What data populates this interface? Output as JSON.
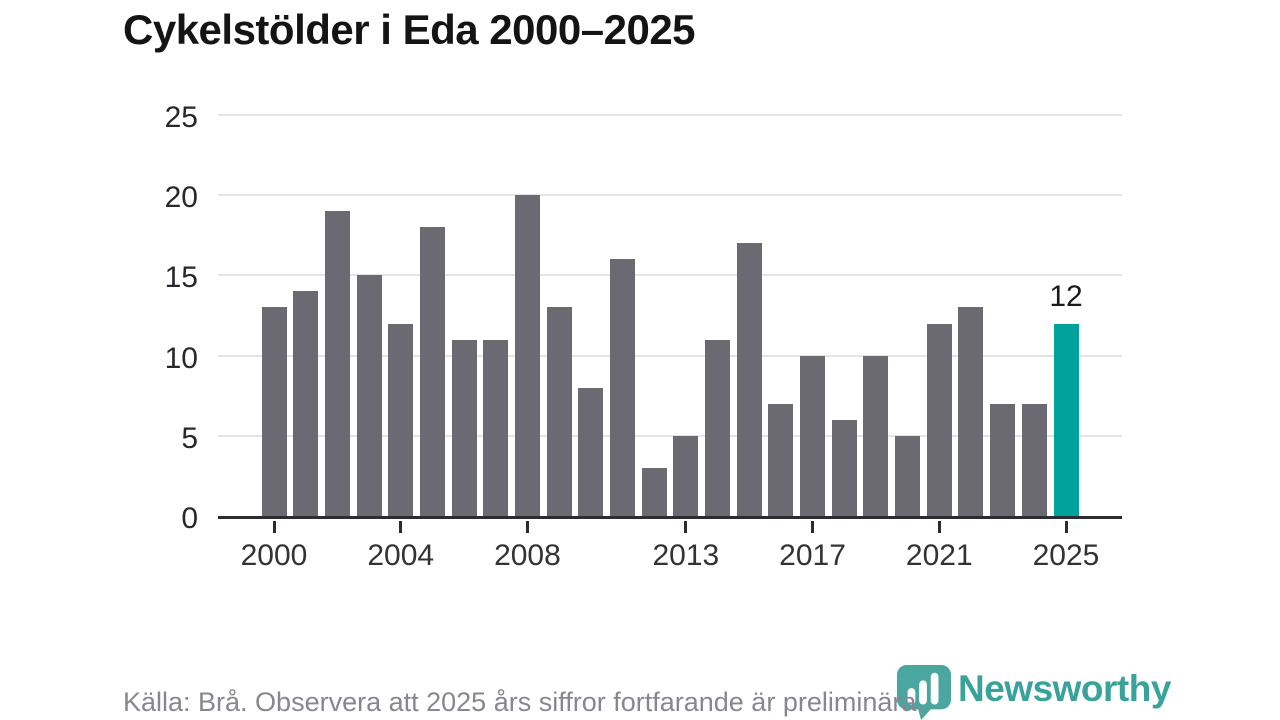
{
  "title": "Cykelstölder i Eda 2000–2025",
  "footer": {
    "source": "Källa: Brå. Observera att 2025 års siffror fortfarande är preliminära."
  },
  "logo": {
    "wordmark": "Newsworthy",
    "icon": "newsworthy-speech-bubble-barchart-icon",
    "wordmark_color": "#38a29b",
    "icon_color": "#4ba69f"
  },
  "colors": {
    "bar": "#6b6971",
    "highlight": "#00a29b",
    "axis": "#2d2d31",
    "grid": "#e4e4e4",
    "label_text": "#1a1a1a",
    "muted_text": "#8a8691"
  },
  "chart_data": {
    "type": "bar",
    "title": "Cykelstölder i Eda 2000–2025",
    "xlabel": "",
    "ylabel": "",
    "categories": [
      2000,
      2001,
      2002,
      2003,
      2004,
      2005,
      2006,
      2007,
      2008,
      2009,
      2010,
      2011,
      2012,
      2013,
      2014,
      2015,
      2016,
      2017,
      2018,
      2019,
      2020,
      2021,
      2022,
      2023,
      2024,
      2025
    ],
    "values": [
      13,
      14,
      19,
      15,
      12,
      18,
      11,
      11,
      20,
      13,
      8,
      16,
      3,
      5,
      11,
      17,
      7,
      10,
      6,
      10,
      5,
      12,
      13,
      7,
      7,
      12
    ],
    "ylim": [
      0,
      25
    ],
    "yticks": [
      0,
      5,
      10,
      15,
      20,
      25
    ],
    "xticks": [
      2000,
      2004,
      2008,
      2013,
      2017,
      2021,
      2025
    ],
    "grid": "horizontal",
    "legend": "none",
    "highlight": {
      "index": 25,
      "category": 2025,
      "value": 12,
      "label": "12"
    }
  }
}
